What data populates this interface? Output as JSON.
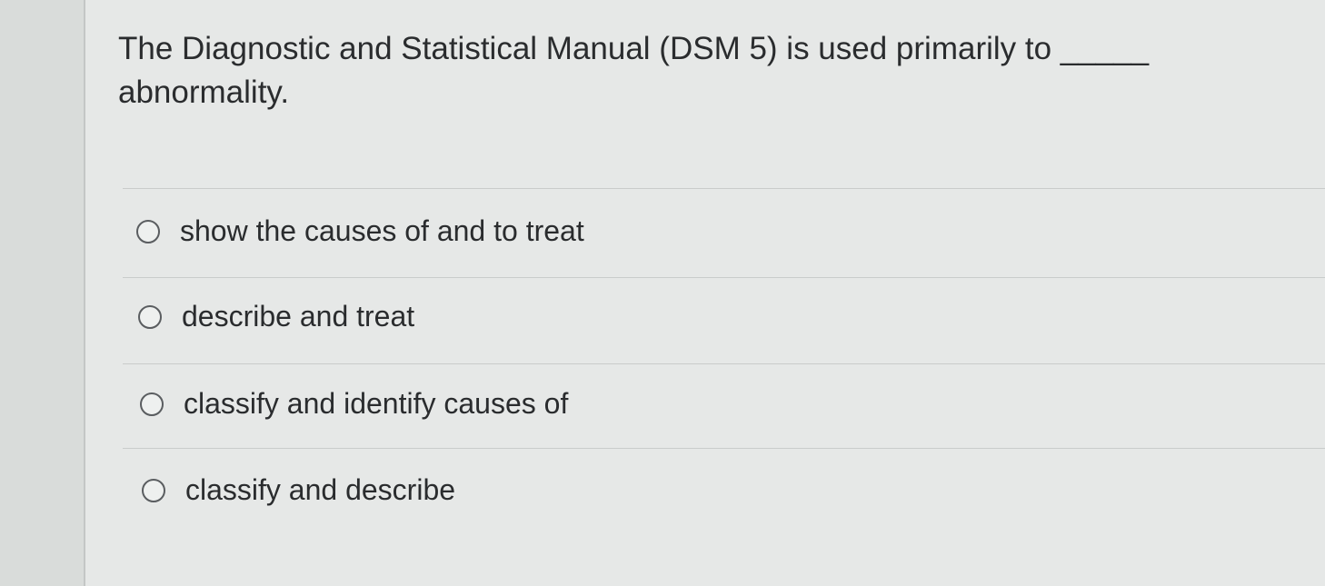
{
  "question": {
    "text": "The Diagnostic and Statistical Manual (DSM 5) is used primarily to _____ abnormality."
  },
  "options": [
    {
      "label": "show the causes of and to treat"
    },
    {
      "label": "describe and treat"
    },
    {
      "label": "classify and identify causes of"
    },
    {
      "label": "classify and describe"
    }
  ]
}
